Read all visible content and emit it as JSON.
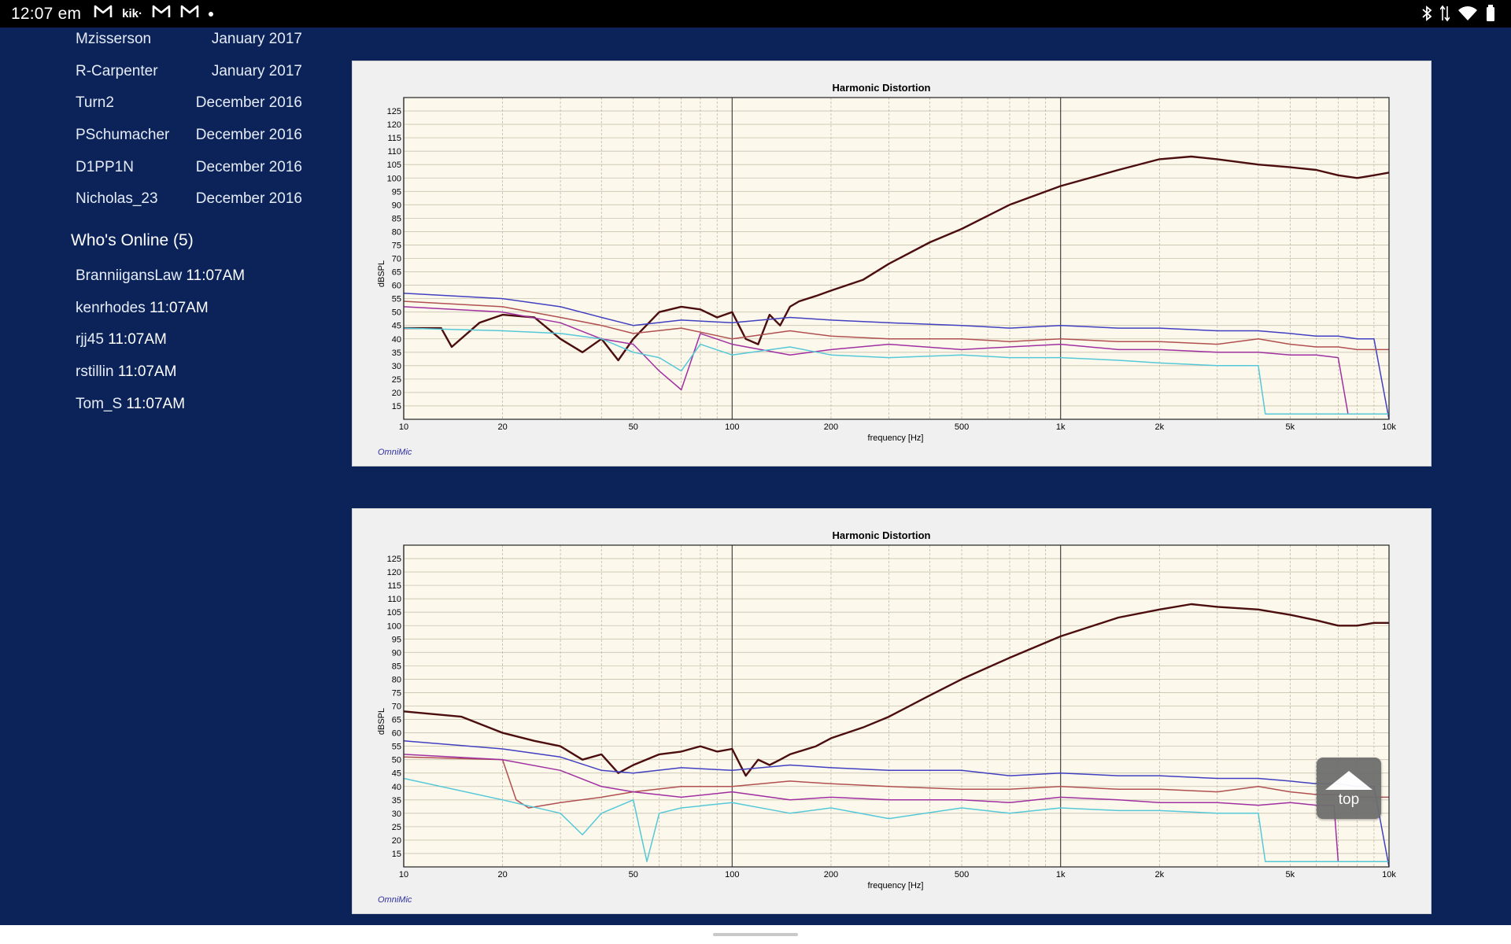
{
  "status_bar": {
    "time": "12:07 em",
    "left_icons": [
      "gmail-icon",
      "kik-icon",
      "gmail-icon",
      "gmail-icon",
      "dot-icon"
    ],
    "kik_text": "kik·",
    "right_icons": [
      "bluetooth-icon",
      "data-arrows-icon",
      "wifi-icon",
      "battery-icon"
    ]
  },
  "sidebar": {
    "new_members": [
      {
        "name": "Mzisserson",
        "date": "January 2017"
      },
      {
        "name": "R-Carpenter",
        "date": "January 2017"
      },
      {
        "name": "Turn2",
        "date": "December 2016"
      },
      {
        "name": "PSchumacher",
        "date": "December 2016"
      },
      {
        "name": "D1PP1N",
        "date": "December 2016"
      },
      {
        "name": "Nicholas_23",
        "date": "December 2016"
      }
    ],
    "whos_online_title": "Who's Online (5)",
    "online_users": [
      {
        "name": "BranniigansLaw",
        "time": "11:07AM"
      },
      {
        "name": "kenrhodes",
        "time": "11:07AM"
      },
      {
        "name": "rjj45",
        "time": "11:07AM"
      },
      {
        "name": "rstillin",
        "time": "11:07AM"
      },
      {
        "name": "Tom_S",
        "time": "11:07AM"
      }
    ]
  },
  "top_button": {
    "label": "top",
    "icon": "triangle-up-icon"
  },
  "chart_data": [
    {
      "type": "line",
      "title": "Harmonic Distortion",
      "xlabel": "frequency [Hz]",
      "ylabel": "dBSPL",
      "brand": "OmniMic",
      "x_scale": "log",
      "xlim": [
        10,
        10000
      ],
      "ylim": [
        10,
        130
      ],
      "grid": true,
      "x_ticks": [
        {
          "v": 10,
          "l": "10"
        },
        {
          "v": 20,
          "l": "20"
        },
        {
          "v": 50,
          "l": "50"
        },
        {
          "v": 100,
          "l": "100"
        },
        {
          "v": 200,
          "l": "200"
        },
        {
          "v": 500,
          "l": "500"
        },
        {
          "v": 1000,
          "l": "1k"
        },
        {
          "v": 2000,
          "l": "2k"
        },
        {
          "v": 5000,
          "l": "5k"
        },
        {
          "v": 10000,
          "l": "10k"
        }
      ],
      "y_ticks": [
        15,
        20,
        25,
        30,
        35,
        40,
        45,
        50,
        55,
        60,
        65,
        70,
        75,
        80,
        85,
        90,
        95,
        100,
        105,
        110,
        115,
        120,
        125
      ],
      "series": [
        {
          "color": "#4b0d0d",
          "x": [
            10,
            13,
            14,
            17,
            20,
            25,
            30,
            35,
            40,
            45,
            50,
            60,
            70,
            80,
            90,
            100,
            110,
            120,
            130,
            140,
            150,
            160,
            180,
            200,
            250,
            300,
            400,
            500,
            700,
            1000,
            1500,
            2000,
            2500,
            3000,
            4000,
            5000,
            6000,
            7000,
            8000,
            9000,
            10000
          ],
          "y": [
            44,
            44,
            37,
            46,
            49,
            48,
            40,
            35,
            40,
            32,
            40,
            50,
            52,
            51,
            48,
            50,
            40,
            38,
            49,
            45,
            52,
            54,
            56,
            58,
            62,
            68,
            76,
            81,
            90,
            97,
            103,
            107,
            108,
            107,
            105,
            104,
            103,
            101,
            100,
            101,
            102
          ]
        },
        {
          "color": "#4040c0",
          "x": [
            10,
            20,
            30,
            40,
            50,
            70,
            100,
            150,
            200,
            300,
            500,
            700,
            1000,
            1500,
            2000,
            3000,
            4000,
            5000,
            6000,
            7000,
            8000,
            9000,
            10000
          ],
          "y": [
            57,
            55,
            52,
            48,
            45,
            47,
            46,
            48,
            47,
            46,
            45,
            44,
            45,
            44,
            44,
            43,
            43,
            42,
            41,
            41,
            40,
            40,
            10
          ]
        },
        {
          "color": "#b05050",
          "x": [
            10,
            20,
            30,
            40,
            50,
            70,
            100,
            150,
            200,
            300,
            500,
            700,
            1000,
            1500,
            2000,
            3000,
            4000,
            5000,
            6000,
            7000,
            8000,
            9000,
            10000
          ],
          "y": [
            54,
            52,
            48,
            45,
            42,
            44,
            40,
            43,
            41,
            40,
            40,
            39,
            40,
            39,
            39,
            38,
            40,
            38,
            37,
            37,
            36,
            36,
            36
          ]
        },
        {
          "color": "#a030a0",
          "x": [
            10,
            20,
            30,
            40,
            50,
            60,
            70,
            80,
            100,
            150,
            200,
            300,
            500,
            700,
            1000,
            1500,
            2000,
            3000,
            4000,
            5000,
            6000,
            7000,
            7500,
            8000,
            10000
          ],
          "y": [
            52,
            50,
            46,
            40,
            38,
            28,
            21,
            42,
            38,
            34,
            36,
            38,
            36,
            37,
            38,
            36,
            36,
            35,
            35,
            34,
            34,
            33,
            12,
            12,
            12
          ]
        },
        {
          "color": "#55c8d8",
          "x": [
            10,
            20,
            30,
            40,
            50,
            60,
            70,
            80,
            100,
            150,
            200,
            300,
            500,
            700,
            1000,
            1500,
            2000,
            3000,
            4000,
            4200,
            4300,
            10000
          ],
          "y": [
            44,
            43,
            42,
            40,
            35,
            33,
            28,
            38,
            34,
            37,
            34,
            33,
            34,
            33,
            33,
            32,
            31,
            30,
            30,
            12,
            12,
            12
          ]
        }
      ]
    },
    {
      "type": "line",
      "title": "Harmonic Distortion",
      "xlabel": "frequency [Hz]",
      "ylabel": "dBSPL",
      "brand": "OmniMic",
      "x_scale": "log",
      "xlim": [
        10,
        10000
      ],
      "ylim": [
        10,
        130
      ],
      "grid": true,
      "x_ticks": [
        {
          "v": 10,
          "l": "10"
        },
        {
          "v": 20,
          "l": "20"
        },
        {
          "v": 50,
          "l": "50"
        },
        {
          "v": 100,
          "l": "100"
        },
        {
          "v": 200,
          "l": "200"
        },
        {
          "v": 500,
          "l": "500"
        },
        {
          "v": 1000,
          "l": "1k"
        },
        {
          "v": 2000,
          "l": "2k"
        },
        {
          "v": 5000,
          "l": "5k"
        },
        {
          "v": 10000,
          "l": "10k"
        }
      ],
      "y_ticks": [
        15,
        20,
        25,
        30,
        35,
        40,
        45,
        50,
        55,
        60,
        65,
        70,
        75,
        80,
        85,
        90,
        95,
        100,
        105,
        110,
        115,
        120,
        125
      ],
      "series": [
        {
          "color": "#4b0d0d",
          "x": [
            10,
            15,
            20,
            25,
            30,
            35,
            40,
            45,
            50,
            60,
            70,
            80,
            90,
            100,
            110,
            120,
            130,
            140,
            150,
            180,
            200,
            250,
            300,
            400,
            500,
            700,
            1000,
            1500,
            2000,
            2500,
            3000,
            4000,
            5000,
            6000,
            7000,
            8000,
            9000,
            10000
          ],
          "y": [
            68,
            66,
            60,
            57,
            55,
            50,
            52,
            45,
            48,
            52,
            53,
            55,
            53,
            54,
            44,
            50,
            48,
            50,
            52,
            55,
            58,
            62,
            66,
            74,
            80,
            88,
            96,
            103,
            106,
            108,
            107,
            106,
            104,
            102,
            100,
            100,
            101,
            101
          ]
        },
        {
          "color": "#4040c0",
          "x": [
            10,
            20,
            30,
            40,
            50,
            70,
            100,
            150,
            200,
            300,
            500,
            700,
            1000,
            1500,
            2000,
            3000,
            4000,
            5000,
            6000,
            7000,
            8000,
            9000,
            10000
          ],
          "y": [
            57,
            54,
            51,
            46,
            45,
            47,
            46,
            48,
            47,
            46,
            46,
            44,
            45,
            44,
            44,
            43,
            43,
            42,
            41,
            41,
            40,
            40,
            10
          ]
        },
        {
          "color": "#b05050",
          "x": [
            10,
            20,
            22,
            24,
            30,
            40,
            50,
            70,
            100,
            150,
            200,
            300,
            500,
            700,
            1000,
            1500,
            2000,
            3000,
            4000,
            5000,
            6000,
            7000,
            8000,
            9000,
            10000
          ],
          "y": [
            51,
            50,
            35,
            32,
            34,
            36,
            38,
            40,
            40,
            42,
            41,
            40,
            39,
            39,
            40,
            39,
            39,
            38,
            40,
            38,
            37,
            37,
            36,
            36,
            36
          ]
        },
        {
          "color": "#a030a0",
          "x": [
            10,
            20,
            30,
            40,
            50,
            70,
            100,
            150,
            200,
            300,
            500,
            700,
            1000,
            1500,
            2000,
            3000,
            4000,
            5000,
            6000,
            6800,
            7000,
            10000
          ],
          "y": [
            52,
            50,
            46,
            40,
            38,
            36,
            38,
            35,
            36,
            35,
            35,
            34,
            36,
            35,
            34,
            34,
            33,
            34,
            33,
            33,
            12,
            12
          ]
        },
        {
          "color": "#55c8d8",
          "x": [
            10,
            20,
            30,
            35,
            40,
            50,
            55,
            60,
            70,
            100,
            150,
            200,
            300,
            500,
            700,
            1000,
            1500,
            2000,
            3000,
            4000,
            4200,
            4300,
            10000
          ],
          "y": [
            43,
            35,
            30,
            22,
            30,
            35,
            12,
            30,
            32,
            34,
            30,
            32,
            28,
            32,
            30,
            32,
            31,
            31,
            30,
            30,
            12,
            12,
            12
          ]
        }
      ]
    }
  ]
}
